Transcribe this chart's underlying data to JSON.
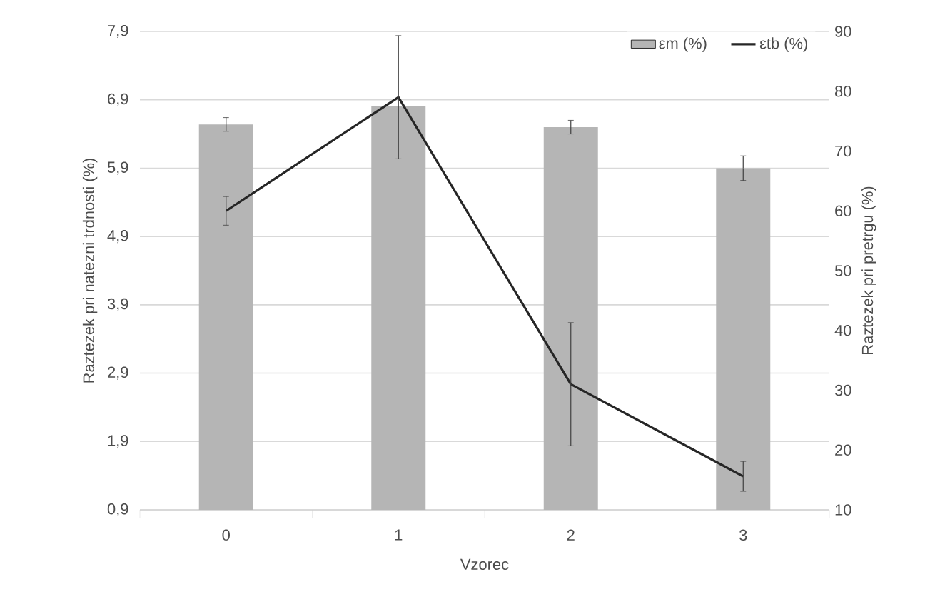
{
  "chart_data": {
    "type": "bar",
    "xlabel": "Vzorec",
    "ylabel": "Raztezek pri natezni trdnosti (%)",
    "y2label": "Raztezek pri pretrgu (%)",
    "categories": [
      "0",
      "1",
      "2",
      "3"
    ],
    "series": [
      {
        "name": "εm (%)",
        "color": "#b5b5b5",
        "values": [
          6.54,
          6.81,
          6.5,
          5.9
        ],
        "errors": [
          0.1,
          null,
          0.1,
          0.18
        ]
      },
      {
        "name": "εtb (%)",
        "type": "line",
        "axis": "y2",
        "color": "#262626",
        "values": [
          60,
          79,
          31,
          15.6
        ],
        "errors": [
          2.4,
          10.3,
          10.3,
          2.5
        ]
      }
    ],
    "ylim": [
      0.9,
      7.9
    ],
    "yticks": [
      {
        "value": 0.9,
        "label": "0,9"
      },
      {
        "value": 1.9,
        "label": "1,9"
      },
      {
        "value": 2.9,
        "label": "2,9"
      },
      {
        "value": 3.9,
        "label": "3,9"
      },
      {
        "value": 4.9,
        "label": "4,9"
      },
      {
        "value": 5.9,
        "label": "5,9"
      },
      {
        "value": 6.9,
        "label": "6,9"
      },
      {
        "value": 7.9,
        "label": "7,9"
      }
    ],
    "y2lim": [
      10,
      90
    ],
    "y2ticks": [
      10,
      20,
      30,
      40,
      50,
      60,
      70,
      80,
      90
    ],
    "grid": "y",
    "legend": "top right",
    "marker": "none",
    "line_style": "solid"
  }
}
